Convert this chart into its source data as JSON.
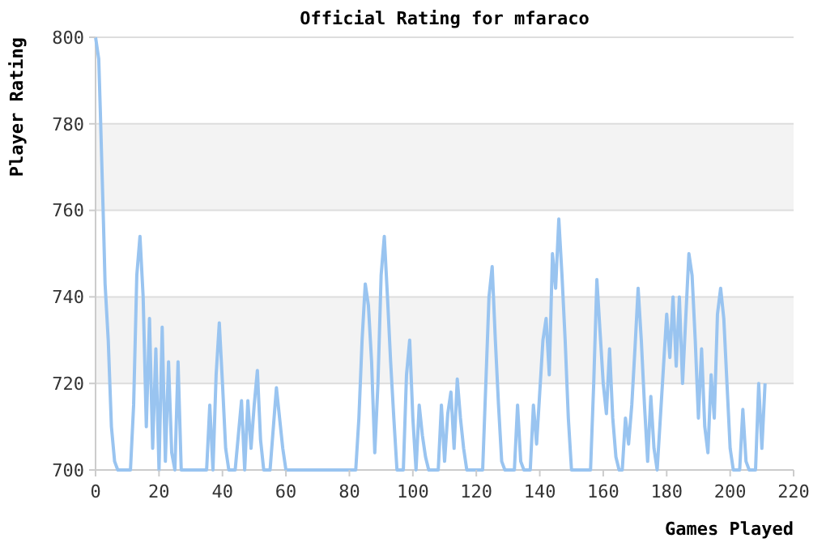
{
  "chart_data": {
    "type": "line",
    "title": "Official Rating for mfaraco",
    "xlabel": "Games Played",
    "ylabel": "Player Rating",
    "xlim": [
      0,
      220
    ],
    "xticks": [
      0,
      20,
      40,
      60,
      80,
      100,
      120,
      140,
      160,
      180,
      200,
      220
    ],
    "ylim": [
      700,
      800
    ],
    "yticks": [
      700,
      720,
      740,
      760,
      780,
      800
    ],
    "grid": "y",
    "marker": "none",
    "line_style": "solid",
    "series": [
      {
        "color": "#99c4f0",
        "x": [
          0,
          1,
          1.5,
          2,
          2.5,
          3,
          4,
          5,
          6,
          7,
          11,
          12,
          13,
          14,
          15,
          16,
          17,
          18,
          19,
          20,
          21,
          22,
          23,
          24,
          25,
          26,
          27,
          35,
          36,
          37,
          38,
          39,
          40,
          41,
          42,
          44,
          46,
          47,
          48,
          49,
          50,
          51,
          52,
          53,
          55,
          57,
          58,
          59,
          60,
          82,
          83,
          84,
          85,
          86,
          87,
          88,
          89,
          90,
          91,
          92,
          93,
          94,
          95,
          97,
          98,
          99,
          100,
          101,
          102,
          103,
          104,
          105,
          108,
          109,
          110,
          111,
          112,
          113,
          114,
          115,
          116,
          117,
          122,
          123,
          124,
          125,
          126,
          127,
          128,
          129,
          132,
          133,
          134,
          135,
          137,
          138,
          139,
          140,
          141,
          142,
          143,
          144,
          145,
          146,
          147,
          148,
          149,
          150,
          156,
          157,
          158,
          159,
          160,
          161,
          162,
          163,
          164,
          165,
          166,
          167,
          168,
          169,
          170,
          171,
          172,
          173,
          174,
          175,
          176,
          177,
          178,
          179,
          180,
          181,
          182,
          183,
          184,
          185,
          186,
          187,
          188,
          189,
          190,
          191,
          192,
          193,
          194,
          195,
          196,
          197,
          198,
          199,
          200,
          201,
          203,
          204,
          205,
          206,
          208,
          209,
          210,
          211
        ],
        "values": [
          800,
          795,
          783,
          770,
          757,
          743,
          730,
          710,
          702,
          700,
          700,
          715,
          745,
          754,
          740,
          710,
          735,
          705,
          728,
          700,
          733,
          702,
          725,
          704,
          700,
          725,
          700,
          700,
          715,
          700,
          722,
          734,
          720,
          705,
          700,
          700,
          716,
          700,
          716,
          705,
          715,
          723,
          707,
          700,
          700,
          719,
          712,
          705,
          700,
          700,
          712,
          730,
          743,
          738,
          725,
          704,
          720,
          745,
          754,
          740,
          725,
          712,
          700,
          700,
          722,
          730,
          712,
          700,
          715,
          708,
          703,
          700,
          700,
          715,
          702,
          713,
          718,
          705,
          721,
          712,
          705,
          700,
          700,
          720,
          740,
          747,
          730,
          715,
          702,
          700,
          700,
          715,
          702,
          700,
          700,
          715,
          706,
          718,
          730,
          735,
          722,
          750,
          742,
          758,
          745,
          730,
          712,
          700,
          700,
          720,
          744,
          732,
          720,
          713,
          728,
          712,
          703,
          700,
          700,
          712,
          706,
          715,
          728,
          742,
          730,
          715,
          702,
          717,
          705,
          700,
          712,
          724,
          736,
          726,
          740,
          724,
          740,
          720,
          735,
          750,
          745,
          730,
          712,
          728,
          710,
          704,
          722,
          712,
          736,
          742,
          735,
          720,
          705,
          700,
          700,
          714,
          702,
          700,
          700,
          720,
          705,
          720
        ]
      }
    ]
  }
}
